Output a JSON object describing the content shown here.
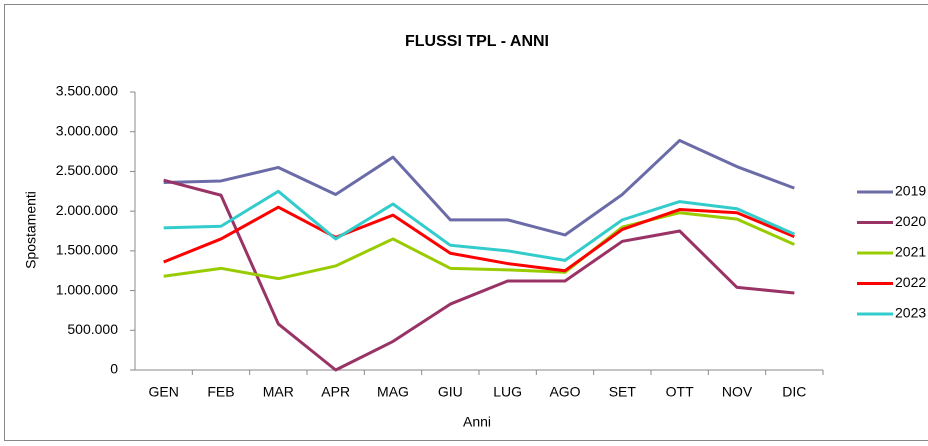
{
  "chart_data": {
    "type": "line",
    "title": "FLUSSI TPL - ANNI",
    "x_label": "Anni",
    "y_label": "Spostamenti",
    "categories": [
      "GEN",
      "FEB",
      "MAR",
      "APR",
      "MAG",
      "GIU",
      "LUG",
      "AGO",
      "SET",
      "OTT",
      "NOV",
      "DIC"
    ],
    "series": [
      {
        "name": "2019",
        "color": "#6b6ba8",
        "values": [
          2360000,
          2380000,
          2550000,
          2210000,
          2680000,
          1890000,
          1890000,
          1700000,
          2210000,
          2890000,
          2560000,
          2290000
        ]
      },
      {
        "name": "2020",
        "color": "#993366",
        "values": [
          2390000,
          2200000,
          580000,
          0,
          360000,
          830000,
          1120000,
          1120000,
          1620000,
          1750000,
          1040000,
          970000
        ]
      },
      {
        "name": "2021",
        "color": "#99cc00",
        "values": [
          1180000,
          1280000,
          1150000,
          1310000,
          1650000,
          1280000,
          1260000,
          1230000,
          1800000,
          1980000,
          1900000,
          1580000
        ]
      },
      {
        "name": "2022",
        "color": "#ff0000",
        "values": [
          1360000,
          1650000,
          2050000,
          1670000,
          1950000,
          1470000,
          1340000,
          1250000,
          1770000,
          2020000,
          1980000,
          1680000
        ]
      },
      {
        "name": "2023",
        "color": "#33cccc",
        "values": [
          1790000,
          1810000,
          2250000,
          1650000,
          2090000,
          1570000,
          1500000,
          1380000,
          1890000,
          2120000,
          2030000,
          1710000
        ]
      }
    ],
    "ylim": [
      0,
      3500000
    ],
    "yticks": [
      0,
      {
        "value": 500000,
        "label": "500.000"
      },
      {
        "value": 1000000,
        "label": "1.000.000"
      },
      {
        "value": 1500000,
        "label": "1.500.000"
      },
      {
        "value": 2000000,
        "label": "2.000.000"
      },
      {
        "value": 2500000,
        "label": "2.500.000"
      },
      {
        "value": 3000000,
        "label": "3.000.000"
      },
      {
        "value": 3500000,
        "label": "3.500.000"
      }
    ],
    "grid": false,
    "legend": "right"
  }
}
